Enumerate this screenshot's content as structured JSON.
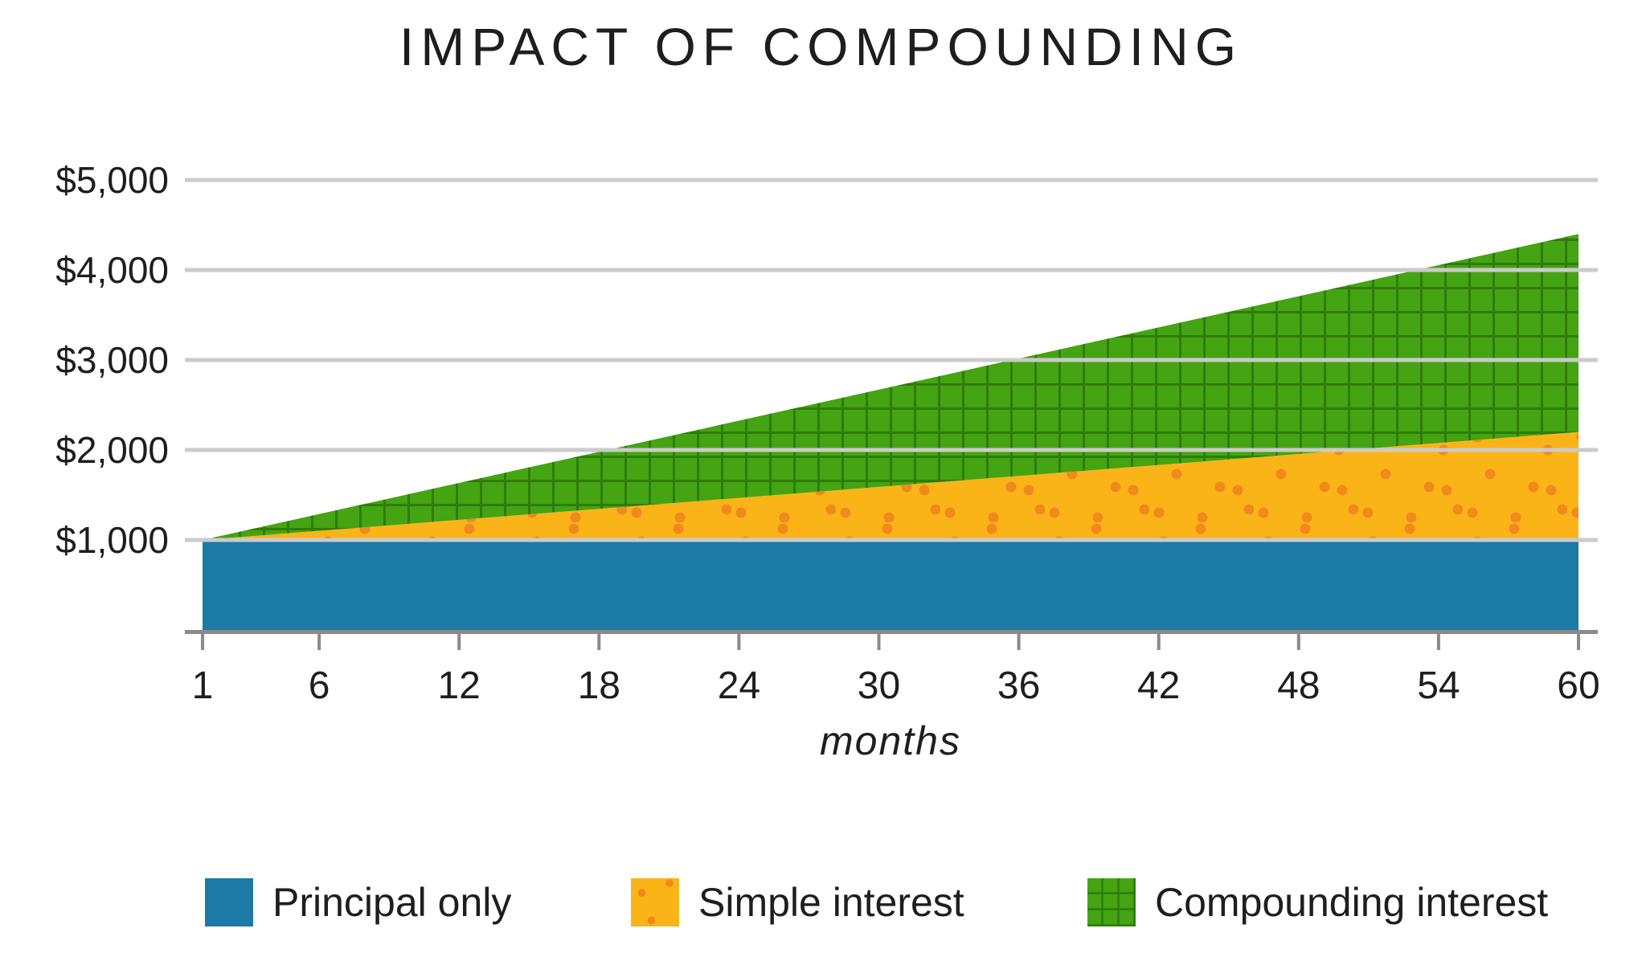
{
  "title": "IMPACT OF COMPOUNDING",
  "chart_data": {
    "type": "area",
    "stacked": true,
    "title": "IMPACT OF COMPOUNDING",
    "xlabel": "months",
    "x_range": [
      1,
      60
    ],
    "x_ticks": [
      1,
      6,
      12,
      18,
      24,
      30,
      36,
      42,
      48,
      54,
      60
    ],
    "y_range": [
      0,
      5000
    ],
    "y_ticks": [
      {
        "value": 1000,
        "label": "$1,000"
      },
      {
        "value": 2000,
        "label": "$2,000"
      },
      {
        "value": 3000,
        "label": "$3,000"
      },
      {
        "value": 4000,
        "label": "$4,000"
      },
      {
        "value": 5000,
        "label": "$5,000"
      }
    ],
    "grid": true,
    "legend_position": "bottom",
    "baseline_value": 0,
    "series": [
      {
        "name": "Principal only",
        "fill": "#1B7AA6",
        "pattern": "solid",
        "points": [
          {
            "month": 1,
            "value": 1000
          },
          {
            "month": 60,
            "value": 1000
          }
        ]
      },
      {
        "name": "Simple interest",
        "fill": "#FBB417",
        "pattern": "dots",
        "pattern_color": "#F2891C",
        "points": [
          {
            "month": 1,
            "value": 1000
          },
          {
            "month": 60,
            "value": 2200
          }
        ]
      },
      {
        "name": "Compounding interest",
        "fill": "#44A411",
        "pattern": "grid",
        "pattern_color": "#2E7D0C",
        "points": [
          {
            "month": 1,
            "value": 1000
          },
          {
            "month": 60,
            "value": 4400
          }
        ]
      }
    ]
  },
  "colors": {
    "background": "#FFFFFF",
    "gridline": "#CBCBCB",
    "axis": "#8A8A8A",
    "text": "#1E1E1E"
  }
}
